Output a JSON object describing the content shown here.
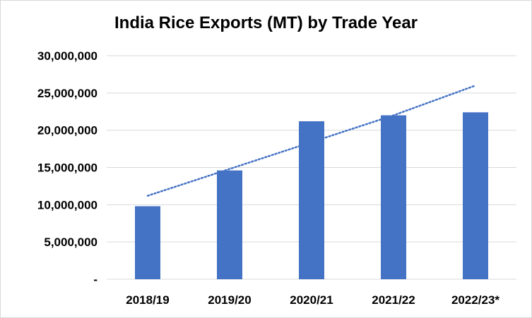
{
  "chart_data": {
    "type": "bar",
    "title": "India Rice Exports (MT) by Trade Year",
    "xlabel": "",
    "ylabel": "",
    "categories": [
      "2018/19",
      "2019/20",
      "2020/21",
      "2021/22",
      "2022/23*"
    ],
    "series": [
      {
        "values": [
          9800000,
          14600000,
          21200000,
          22000000,
          22400000
        ]
      }
    ],
    "trendline": {
      "type": "linear",
      "style": "dotted",
      "values": [
        11200000,
        14800000,
        18400000,
        22000000,
        26000000
      ]
    },
    "ylim": [
      0,
      30000000
    ],
    "yticks": [
      0,
      5000000,
      10000000,
      15000000,
      20000000,
      25000000,
      30000000
    ],
    "ytick_labels": [
      "-",
      "5,000,000",
      "10,000,000",
      "15,000,000",
      "20,000,000",
      "25,000,000",
      "30,000,000"
    ],
    "grid": true,
    "legend": "none",
    "colors": {
      "bar": "#4472c4",
      "trendline": "#4472c4",
      "grid": "#d9d9d9"
    }
  }
}
